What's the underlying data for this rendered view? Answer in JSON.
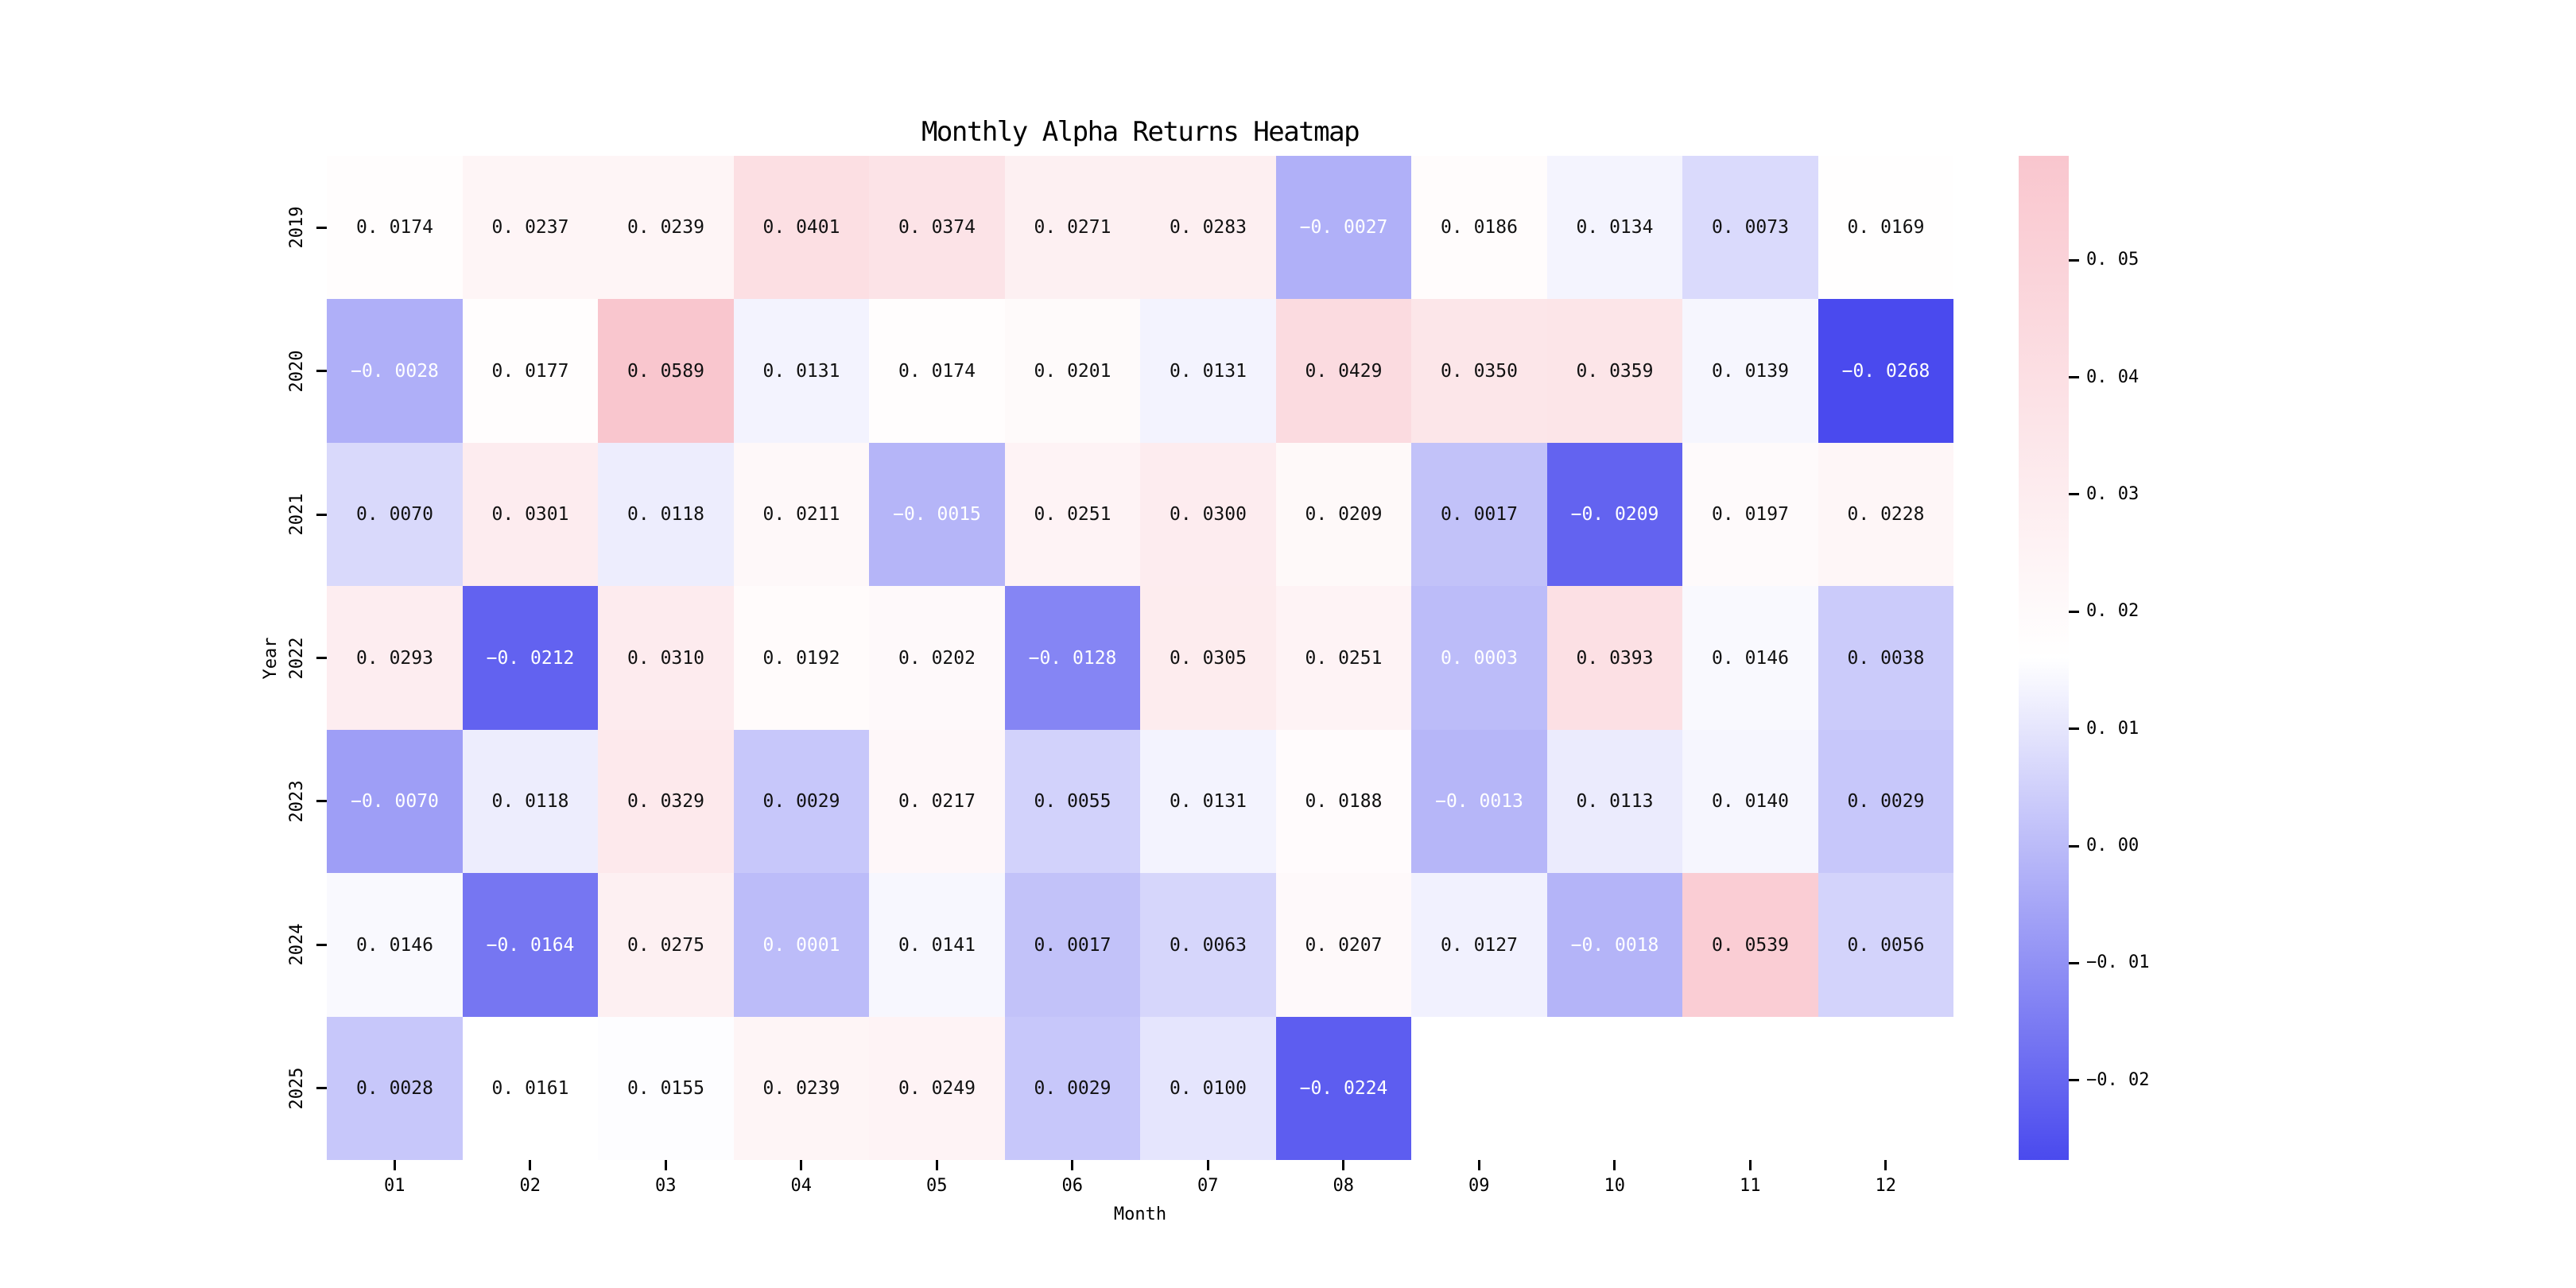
{
  "figure": {
    "background": "#ffffff"
  },
  "chart_data": {
    "type": "heatmap",
    "title": "Monthly Alpha Returns Heatmap",
    "xlabel": "Month",
    "ylabel": "Year",
    "columns": [
      "01",
      "02",
      "03",
      "04",
      "05",
      "06",
      "07",
      "08",
      "09",
      "10",
      "11",
      "12"
    ],
    "rows": [
      "2019",
      "2020",
      "2021",
      "2022",
      "2023",
      "2024",
      "2025"
    ],
    "values": [
      [
        0.0174,
        0.0237,
        0.0239,
        0.0401,
        0.0374,
        0.0271,
        0.0283,
        -0.0027,
        0.0186,
        0.0134,
        0.0073,
        0.0169
      ],
      [
        -0.0028,
        0.0177,
        0.0589,
        0.0131,
        0.0174,
        0.0201,
        0.0131,
        0.0429,
        0.035,
        0.0359,
        0.0139,
        -0.0268
      ],
      [
        0.007,
        0.0301,
        0.0118,
        0.0211,
        -0.0015,
        0.0251,
        0.03,
        0.0209,
        0.0017,
        -0.0209,
        0.0197,
        0.0228
      ],
      [
        0.0293,
        -0.0212,
        0.031,
        0.0192,
        0.0202,
        -0.0128,
        0.0305,
        0.0251,
        0.0003,
        0.0393,
        0.0146,
        0.0038
      ],
      [
        -0.007,
        0.0118,
        0.0329,
        0.0029,
        0.0217,
        0.0055,
        0.0131,
        0.0188,
        -0.0013,
        0.0113,
        0.014,
        0.0029
      ],
      [
        0.0146,
        -0.0164,
        0.0275,
        0.0001,
        0.0141,
        0.0017,
        0.0063,
        0.0207,
        0.0127,
        -0.0018,
        0.0539,
        0.0056
      ],
      [
        0.0028,
        0.0161,
        0.0155,
        0.0239,
        0.0249,
        0.0029,
        0.01,
        -0.0224,
        null,
        null,
        null,
        null
      ]
    ],
    "vmin": -0.0268,
    "vmax": 0.0589,
    "value_decimals": 4,
    "colorbar_ticks": [
      0.05,
      0.04,
      0.03,
      0.02,
      0.01,
      0.0,
      -0.01,
      -0.02
    ],
    "colorbar_tick_decimals": 2,
    "colormap": {
      "low": "#4a4aee",
      "mid": "#ffffff",
      "high": "#f9c6ce"
    },
    "annotation": {
      "light_text_color": "#ffffff",
      "dark_text_color": "#111111",
      "light_text_value_threshold": 0.001
    },
    "masked_cell_color": "#ffffff",
    "legend_position": "right-colorbar",
    "grid": false
  }
}
